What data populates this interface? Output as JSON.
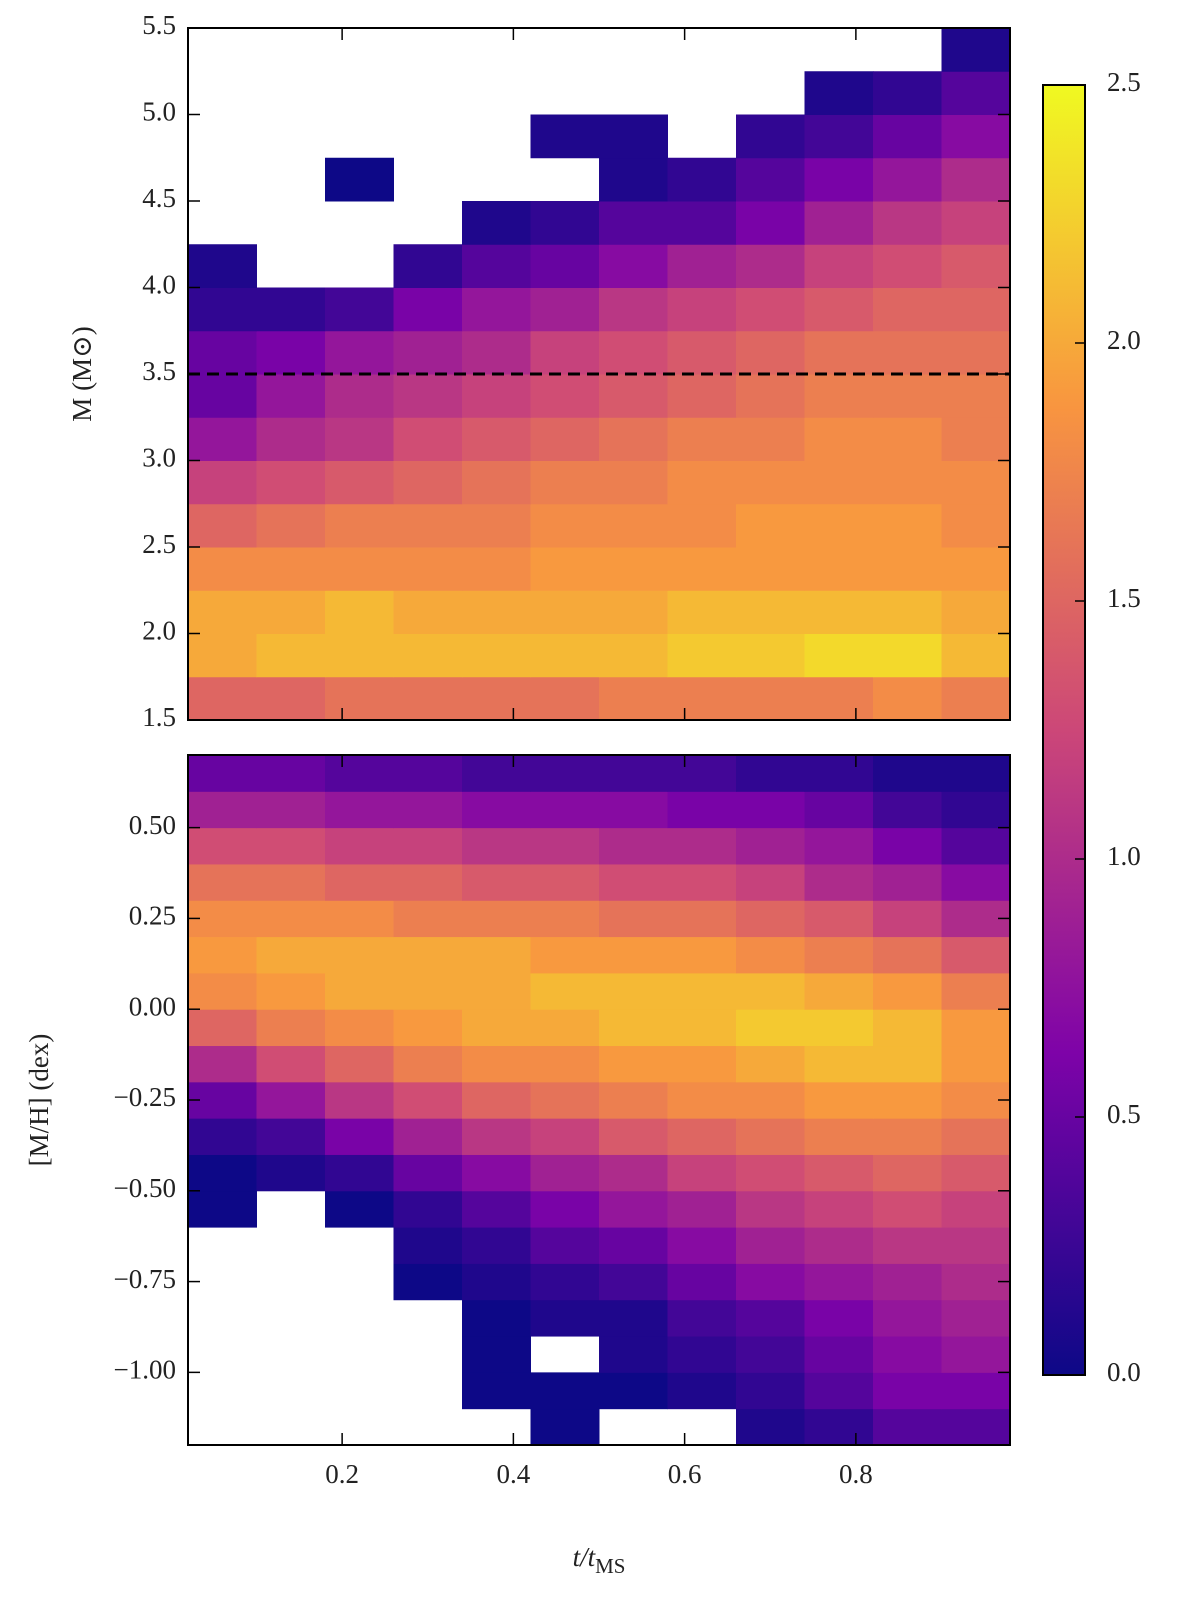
{
  "chart_data": {
    "type": "heatmap",
    "xlabel": {
      "text": "t/t",
      "sub": "MS"
    },
    "xlim": [
      0.02,
      0.98
    ],
    "xticks": [
      0.2,
      0.4,
      0.6,
      0.8
    ],
    "x_bins": [
      0.02,
      0.1,
      0.18,
      0.26,
      0.34,
      0.42,
      0.5,
      0.58,
      0.66,
      0.74,
      0.82,
      0.9,
      0.98
    ],
    "colormap": "plasma",
    "clim": [
      0,
      2.5
    ],
    "cticks": [
      {
        "value": 0,
        "label": "0.0"
      },
      0.5,
      {
        "value": 1,
        "label": "1.0"
      },
      1.5,
      {
        "value": 2,
        "label": "2.0"
      },
      2.5
    ],
    "panels": [
      {
        "ylabel": "M (M⊙)",
        "ylim": [
          1.5,
          5.5
        ],
        "yticks": [
          1.5,
          {
            "value": 2,
            "label": "2.0"
          },
          2.5,
          {
            "value": 3,
            "label": "3.0"
          },
          3.5,
          {
            "value": 4,
            "label": "4.0"
          },
          4.5,
          {
            "value": 5,
            "label": "5.0"
          },
          5.5
        ],
        "hline": {
          "value": 3.5,
          "color": "#000000",
          "style": "dashed"
        },
        "y_bins": [
          1.5,
          1.75,
          2.0,
          2.25,
          2.5,
          2.75,
          3.0,
          3.25,
          3.5,
          3.75,
          4.0,
          4.25,
          4.5,
          4.75,
          5.0,
          5.25,
          5.5
        ],
        "values": [
          [
            1.5,
            1.5,
            1.6,
            1.6,
            1.6,
            1.6,
            1.7,
            1.7,
            1.7,
            1.7,
            1.8,
            1.7
          ],
          [
            2.0,
            2.1,
            2.1,
            2.1,
            2.1,
            2.1,
            2.1,
            2.2,
            2.2,
            2.3,
            2.3,
            2.1
          ],
          [
            2.0,
            2.0,
            2.1,
            2.0,
            2.0,
            2.0,
            2.0,
            2.1,
            2.1,
            2.1,
            2.1,
            2.0
          ],
          [
            1.8,
            1.8,
            1.8,
            1.8,
            1.8,
            1.9,
            1.9,
            1.9,
            1.9,
            1.9,
            1.9,
            1.9
          ],
          [
            1.5,
            1.6,
            1.7,
            1.7,
            1.7,
            1.8,
            1.8,
            1.8,
            1.9,
            1.9,
            1.9,
            1.8
          ],
          [
            1.2,
            1.3,
            1.4,
            1.5,
            1.6,
            1.7,
            1.7,
            1.8,
            1.8,
            1.8,
            1.8,
            1.8
          ],
          [
            0.8,
            1.0,
            1.1,
            1.3,
            1.4,
            1.5,
            1.6,
            1.7,
            1.7,
            1.8,
            1.8,
            1.7
          ],
          [
            0.5,
            0.8,
            1.0,
            1.1,
            1.2,
            1.3,
            1.4,
            1.5,
            1.6,
            1.7,
            1.7,
            1.7
          ],
          [
            0.5,
            0.6,
            0.8,
            0.9,
            1.0,
            1.2,
            1.3,
            1.4,
            1.5,
            1.6,
            1.6,
            1.6
          ],
          [
            0.2,
            0.2,
            0.3,
            0.6,
            0.8,
            0.9,
            1.1,
            1.2,
            1.3,
            1.4,
            1.5,
            1.5
          ],
          [
            0.1,
            null,
            null,
            0.2,
            0.4,
            0.5,
            0.7,
            0.9,
            1.0,
            1.2,
            1.3,
            1.4
          ],
          [
            null,
            null,
            null,
            null,
            0.1,
            0.2,
            0.4,
            0.4,
            0.6,
            0.9,
            1.1,
            1.2
          ],
          [
            null,
            null,
            0.0,
            null,
            null,
            null,
            0.1,
            0.2,
            0.4,
            0.6,
            0.8,
            1.0
          ],
          [
            null,
            null,
            null,
            null,
            null,
            0.1,
            0.1,
            null,
            0.2,
            0.3,
            0.5,
            0.7
          ],
          [
            null,
            null,
            null,
            null,
            null,
            null,
            null,
            null,
            null,
            0.1,
            0.2,
            0.4
          ],
          [
            null,
            null,
            null,
            null,
            null,
            null,
            null,
            null,
            null,
            null,
            null,
            0.1
          ]
        ]
      },
      {
        "ylabel": "[M/H] (dex)",
        "ylim": [
          -1.2,
          0.7
        ],
        "yticks": [
          {
            "value": -1,
            "label": "−1.00"
          },
          {
            "value": -0.75,
            "label": "−0.75"
          },
          {
            "value": -0.5,
            "label": "−0.50"
          },
          {
            "value": -0.25,
            "label": "−0.25"
          },
          {
            "value": 0,
            "label": "0.00"
          },
          0.25,
          {
            "value": 0.5,
            "label": "0.50"
          }
        ],
        "y_bins": [
          -1.2,
          -1.1,
          -1.0,
          -0.9,
          -0.8,
          -0.7,
          -0.6,
          -0.5,
          -0.4,
          -0.3,
          -0.2,
          -0.1,
          0.0,
          0.1,
          0.2,
          0.3,
          0.4,
          0.5,
          0.6,
          0.7
        ],
        "values": [
          [
            null,
            null,
            null,
            null,
            null,
            0.0,
            null,
            null,
            0.1,
            0.2,
            0.4,
            0.4
          ],
          [
            null,
            null,
            null,
            null,
            0.0,
            0.0,
            0.0,
            0.1,
            0.2,
            0.4,
            0.6,
            0.6
          ],
          [
            null,
            null,
            null,
            null,
            0.0,
            null,
            0.1,
            0.2,
            0.3,
            0.5,
            0.7,
            0.8
          ],
          [
            null,
            null,
            null,
            null,
            0.0,
            0.1,
            0.1,
            0.3,
            0.4,
            0.6,
            0.8,
            0.9
          ],
          [
            null,
            null,
            null,
            0.0,
            0.1,
            0.2,
            0.3,
            0.5,
            0.7,
            0.8,
            0.9,
            1.0
          ],
          [
            null,
            null,
            null,
            0.1,
            0.2,
            0.4,
            0.5,
            0.7,
            0.9,
            1.0,
            1.1,
            1.1
          ],
          [
            0.0,
            null,
            0.0,
            0.2,
            0.4,
            0.6,
            0.8,
            0.9,
            1.1,
            1.2,
            1.3,
            1.2
          ],
          [
            0.0,
            0.1,
            0.2,
            0.5,
            0.7,
            0.9,
            1.0,
            1.2,
            1.3,
            1.4,
            1.5,
            1.4
          ],
          [
            0.2,
            0.3,
            0.6,
            0.9,
            1.1,
            1.2,
            1.4,
            1.5,
            1.6,
            1.7,
            1.7,
            1.6
          ],
          [
            0.5,
            0.8,
            1.1,
            1.3,
            1.5,
            1.6,
            1.7,
            1.8,
            1.8,
            1.9,
            1.9,
            1.8
          ],
          [
            1.0,
            1.3,
            1.5,
            1.7,
            1.8,
            1.8,
            1.9,
            1.9,
            2.0,
            2.1,
            2.1,
            1.9
          ],
          [
            1.5,
            1.7,
            1.8,
            1.9,
            2.0,
            2.0,
            2.1,
            2.1,
            2.2,
            2.2,
            2.1,
            1.9
          ],
          [
            1.8,
            1.9,
            2.0,
            2.0,
            2.0,
            2.1,
            2.1,
            2.1,
            2.1,
            2.0,
            1.9,
            1.7
          ],
          [
            1.9,
            2.0,
            2.0,
            2.0,
            2.0,
            1.9,
            1.9,
            1.9,
            1.8,
            1.7,
            1.6,
            1.4
          ],
          [
            1.8,
            1.8,
            1.8,
            1.7,
            1.7,
            1.7,
            1.6,
            1.6,
            1.5,
            1.4,
            1.2,
            1.0
          ],
          [
            1.6,
            1.6,
            1.5,
            1.5,
            1.4,
            1.4,
            1.3,
            1.3,
            1.2,
            1.0,
            0.9,
            0.7
          ],
          [
            1.3,
            1.3,
            1.2,
            1.2,
            1.1,
            1.1,
            1.0,
            1.0,
            0.9,
            0.8,
            0.6,
            0.4
          ],
          [
            0.9,
            0.9,
            0.8,
            0.8,
            0.7,
            0.7,
            0.7,
            0.6,
            0.6,
            0.5,
            0.3,
            0.2
          ],
          [
            0.5,
            0.5,
            0.4,
            0.4,
            0.3,
            0.3,
            0.3,
            0.3,
            0.2,
            0.2,
            0.1,
            0.1
          ]
        ]
      }
    ]
  }
}
